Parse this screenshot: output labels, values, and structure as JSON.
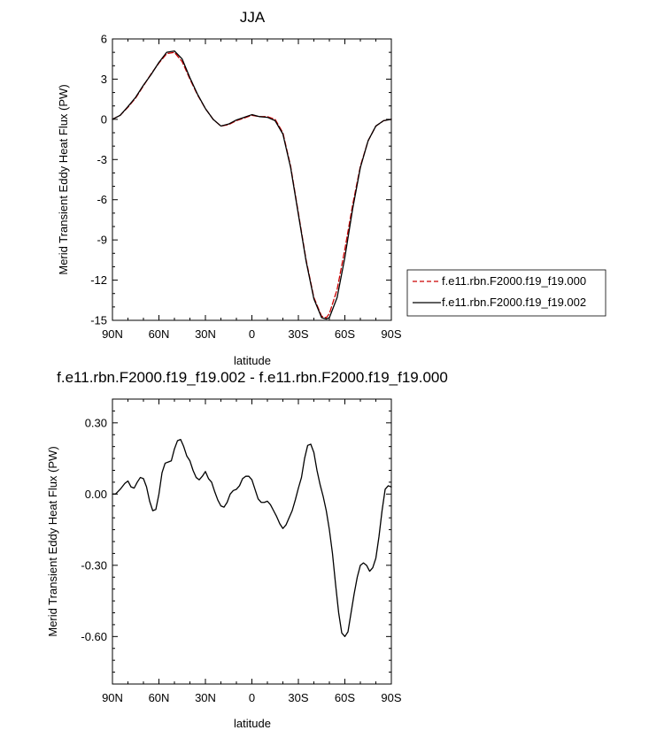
{
  "chart_data": [
    {
      "type": "line",
      "title": "JJA",
      "xlabel": "latitude",
      "ylabel": "Merid Transient Eddy Heat Flux (PW)",
      "xlim": [
        90,
        -90
      ],
      "ylim": [
        -15,
        6
      ],
      "x_ticks": [
        90,
        60,
        30,
        0,
        -30,
        -60,
        -90
      ],
      "x_tick_labels": [
        "90N",
        "60N",
        "30N",
        "0",
        "30S",
        "60S",
        "90S"
      ],
      "y_ticks": [
        6,
        3,
        0,
        -3,
        -6,
        -9,
        -12,
        -15
      ],
      "y_tick_labels": [
        "6",
        "3",
        "0",
        "-3",
        "-6",
        "-9",
        "-12",
        "-15"
      ],
      "legend_position": "right",
      "series": [
        {
          "name": "f.e11.rbn.F2000.f19_f19.000",
          "color": "#cc0000",
          "dash": "dashed",
          "x": [
            90,
            85,
            80,
            75,
            70,
            65,
            60,
            55,
            50,
            45,
            40,
            35,
            30,
            25,
            20,
            15,
            10,
            5,
            0,
            -5,
            -10,
            -15,
            -20,
            -25,
            -30,
            -35,
            -40,
            -45,
            -48,
            -50,
            -55,
            -60,
            -65,
            -70,
            -75,
            -80,
            -85,
            -90
          ],
          "y": [
            0.0,
            0.3,
            0.9,
            1.6,
            2.5,
            3.4,
            4.2,
            4.9,
            5.0,
            4.3,
            3.0,
            1.8,
            0.8,
            0.0,
            -0.5,
            -0.4,
            -0.1,
            0.1,
            0.3,
            0.2,
            0.2,
            0.0,
            -1.0,
            -3.5,
            -7.0,
            -10.5,
            -13.3,
            -14.7,
            -14.8,
            -14.5,
            -12.7,
            -9.7,
            -6.4,
            -3.5,
            -1.6,
            -0.5,
            -0.1,
            0.0
          ]
        },
        {
          "name": "f.e11.rbn.F2000.f19_f19.002",
          "color": "#000000",
          "dash": "solid",
          "x": [
            90,
            85,
            80,
            75,
            70,
            65,
            60,
            55,
            50,
            45,
            40,
            35,
            30,
            25,
            20,
            15,
            10,
            5,
            0,
            -5,
            -10,
            -15,
            -20,
            -25,
            -30,
            -35,
            -40,
            -45,
            -48,
            -50,
            -55,
            -60,
            -65,
            -70,
            -75,
            -80,
            -85,
            -90
          ],
          "y": [
            0.0,
            0.3,
            0.95,
            1.65,
            2.55,
            3.35,
            4.25,
            5.0,
            5.1,
            4.5,
            3.1,
            1.85,
            0.8,
            0.0,
            -0.5,
            -0.35,
            -0.05,
            0.15,
            0.35,
            0.2,
            0.15,
            -0.1,
            -1.1,
            -3.6,
            -7.1,
            -10.6,
            -13.4,
            -14.8,
            -14.9,
            -14.8,
            -13.3,
            -10.3,
            -6.7,
            -3.6,
            -1.6,
            -0.5,
            -0.1,
            0.0
          ]
        }
      ]
    },
    {
      "type": "line",
      "title": "f.e11.rbn.F2000.f19_f19.002 - f.e11.rbn.F2000.f19_f19.000",
      "xlabel": "latitude",
      "ylabel": "Merid Transient Eddy Heat Flux (PW)",
      "xlim": [
        90,
        -90
      ],
      "ylim": [
        -0.8,
        0.4
      ],
      "x_ticks": [
        90,
        60,
        30,
        0,
        -30,
        -60,
        -90
      ],
      "x_tick_labels": [
        "90N",
        "60N",
        "30N",
        "0",
        "30S",
        "60S",
        "90S"
      ],
      "y_ticks": [
        0.3,
        0.0,
        -0.3,
        -0.6
      ],
      "y_tick_labels": [
        "0.30",
        "0.00",
        "-0.30",
        "-0.60"
      ],
      "series": [
        {
          "color": "#000000",
          "dash": "solid",
          "x": [
            90,
            88,
            85,
            82,
            80,
            78,
            76,
            74,
            72,
            70,
            68,
            66,
            64,
            62,
            60,
            58,
            56,
            54,
            52,
            50,
            48,
            46,
            44,
            42,
            40,
            38,
            36,
            34,
            32,
            30,
            28,
            26,
            24,
            22,
            20,
            18,
            16,
            14,
            12,
            10,
            8,
            6,
            4,
            2,
            0,
            -2,
            -4,
            -6,
            -8,
            -10,
            -12,
            -14,
            -16,
            -18,
            -20,
            -22,
            -24,
            -26,
            -28,
            -30,
            -32,
            -34,
            -36,
            -38,
            -40,
            -42,
            -44,
            -46,
            -48,
            -50,
            -52,
            -54,
            -56,
            -58,
            -60,
            -62,
            -64,
            -66,
            -68,
            -70,
            -72,
            -74,
            -76,
            -78,
            -80,
            -82,
            -84,
            -86,
            -88,
            -90
          ],
          "y": [
            0.0,
            0.0,
            0.02,
            0.045,
            0.055,
            0.03,
            0.025,
            0.05,
            0.07,
            0.065,
            0.03,
            -0.03,
            -0.07,
            -0.065,
            0.0,
            0.09,
            0.13,
            0.135,
            0.14,
            0.19,
            0.225,
            0.23,
            0.2,
            0.16,
            0.14,
            0.1,
            0.07,
            0.06,
            0.075,
            0.095,
            0.065,
            0.05,
            0.01,
            -0.025,
            -0.05,
            -0.055,
            -0.035,
            0.0,
            0.015,
            0.02,
            0.035,
            0.065,
            0.075,
            0.075,
            0.06,
            0.02,
            -0.02,
            -0.035,
            -0.035,
            -0.03,
            -0.045,
            -0.07,
            -0.095,
            -0.125,
            -0.145,
            -0.13,
            -0.1,
            -0.07,
            -0.025,
            0.025,
            0.07,
            0.15,
            0.205,
            0.21,
            0.175,
            0.1,
            0.04,
            -0.01,
            -0.07,
            -0.15,
            -0.25,
            -0.38,
            -0.5,
            -0.585,
            -0.6,
            -0.58,
            -0.5,
            -0.42,
            -0.35,
            -0.3,
            -0.29,
            -0.3,
            -0.325,
            -0.31,
            -0.27,
            -0.18,
            -0.07,
            0.02,
            0.035,
            0.03
          ]
        }
      ]
    }
  ]
}
